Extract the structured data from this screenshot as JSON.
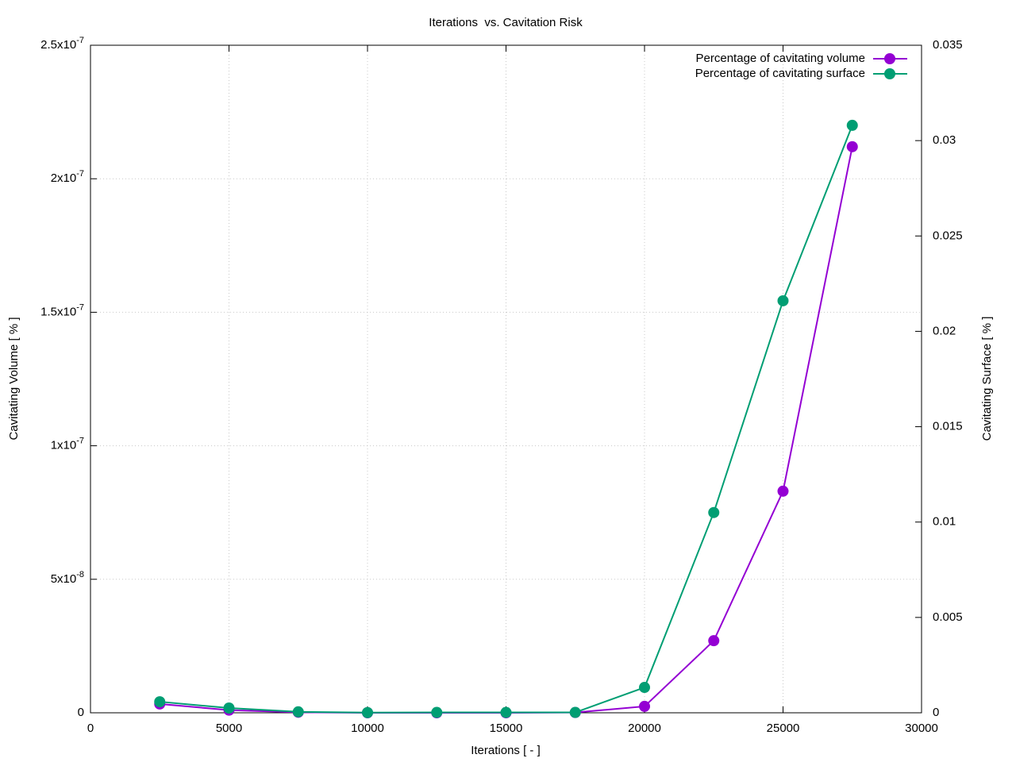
{
  "chart_data": {
    "type": "line",
    "title": "Iterations  vs. Cavitation Risk",
    "xlabel": "Iterations [ - ]",
    "ylabel": "Cavitating Volume [ % ]",
    "y2label": "Cavitating Surface [ % ]",
    "x": [
      2500,
      5000,
      7500,
      10000,
      12500,
      15000,
      17500,
      20000,
      22500,
      25000,
      27500
    ],
    "series": [
      {
        "name": "Percentage of cavitating volume",
        "color": "#9400d3",
        "axis": "y",
        "values": [
          3.3e-09,
          1e-09,
          2e-10,
          0,
          0,
          0,
          1e-10,
          2.4e-09,
          2.7e-08,
          8.3e-08,
          2.12e-07
        ]
      },
      {
        "name": "Percentage of cavitating surface",
        "color": "#009e73",
        "axis": "y2",
        "values": [
          0.00058,
          0.00025,
          5e-05,
          1e-05,
          2e-05,
          2e-05,
          2e-05,
          0.00133,
          0.0105,
          0.0216,
          0.0308
        ]
      }
    ],
    "xlim": [
      0,
      30000
    ],
    "xticks": [
      0,
      5000,
      10000,
      15000,
      20000,
      25000,
      30000
    ],
    "ylim": [
      0,
      2.5e-07
    ],
    "yticks": [
      0,
      {
        "value": 5e-08,
        "label": "5x10-8"
      },
      {
        "value": 1e-07,
        "label": "1x10-7"
      },
      {
        "value": 1.5e-07,
        "label": "1.5x10-7"
      },
      {
        "value": 2e-07,
        "label": "2x10-7"
      },
      {
        "value": 2.5e-07,
        "label": "2.5x10-7"
      }
    ],
    "y2lim": [
      0,
      0.035
    ],
    "y2ticks": [
      0,
      0.005,
      0.01,
      0.015,
      0.02,
      0.025,
      0.03,
      0.035
    ],
    "grid": true,
    "legend": "top-right"
  }
}
